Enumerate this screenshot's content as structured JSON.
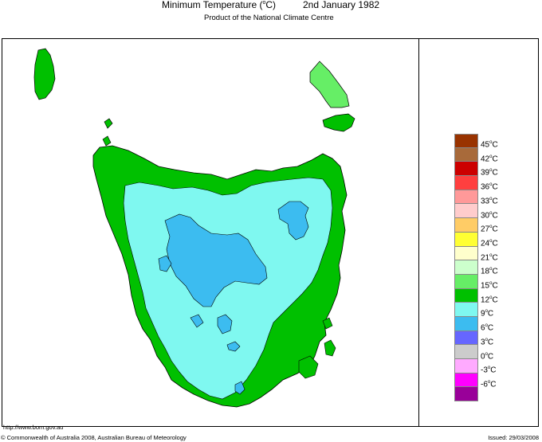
{
  "header": {
    "title_prefix": "Minimum Temperature (",
    "title_sup": "o",
    "title_suffix": "C)",
    "date": "2nd January 1982",
    "subtitle": "Product of the National Climate Centre"
  },
  "colors": {
    "land_cool": "#7ff8f0",
    "land_cold": "#3cbcf0",
    "land_mild": "#00c000",
    "land_warm": "#66ee66",
    "outline": "#000000"
  },
  "legend": {
    "swatches": [
      {
        "label": "45",
        "color": "#993300"
      },
      {
        "label": "42",
        "color": "#a86a3a"
      },
      {
        "label": "39",
        "color": "#cc0000"
      },
      {
        "label": "36",
        "color": "#ff3f3f"
      },
      {
        "label": "33",
        "color": "#ff9999"
      },
      {
        "label": "30",
        "color": "#ffcccc"
      },
      {
        "label": "27",
        "color": "#ffcc66"
      },
      {
        "label": "24",
        "color": "#ffff33"
      },
      {
        "label": "21",
        "color": "#ffffcc"
      },
      {
        "label": "18",
        "color": "#ccffcc"
      },
      {
        "label": "15",
        "color": "#66ee66"
      },
      {
        "label": "12",
        "color": "#00c000"
      },
      {
        "label": "9",
        "color": "#7ff8f0"
      },
      {
        "label": "6",
        "color": "#3cbcf0"
      },
      {
        "label": "3",
        "color": "#6666ff"
      },
      {
        "label": "0",
        "color": "#cccccc"
      },
      {
        "label": "-3",
        "color": "#ffaaff"
      },
      {
        "label": "-6",
        "color": "#ff00ff"
      },
      {
        "label": "",
        "color": "#990099"
      }
    ],
    "unit_sup": "o",
    "unit": "C"
  },
  "footer": {
    "url": "http://www.bom.gov.au",
    "copyright": "© Commonwealth of Australia 2008, Australian Bureau of Meteorology",
    "issued": "Issued: 29/03/2008"
  }
}
